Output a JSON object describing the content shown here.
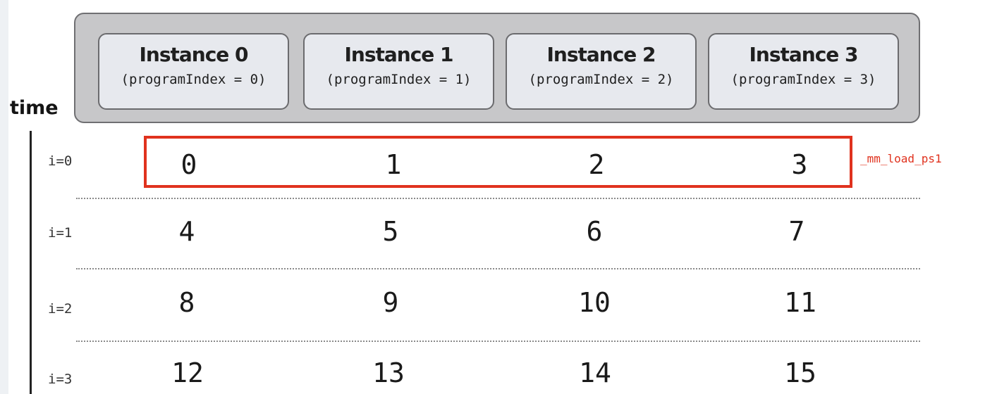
{
  "instances": [
    {
      "title": "Instance 0",
      "subtitle": "(programIndex = 0)"
    },
    {
      "title": "Instance 1",
      "subtitle": "(programIndex = 1)"
    },
    {
      "title": "Instance 2",
      "subtitle": "(programIndex = 2)"
    },
    {
      "title": "Instance 3",
      "subtitle": "(programIndex = 3)"
    }
  ],
  "axis_label": "time",
  "rows": [
    {
      "label": "i=0",
      "values": [
        "0",
        "1",
        "2",
        "3"
      ]
    },
    {
      "label": "i=1",
      "values": [
        "4",
        "5",
        "6",
        "7"
      ]
    },
    {
      "label": "i=2",
      "values": [
        "8",
        "9",
        "10",
        "11"
      ]
    },
    {
      "label": "i=3",
      "values": [
        "12",
        "13",
        "14",
        "15"
      ]
    }
  ],
  "highlight": {
    "label": "_mm_load_ps1",
    "color": "#e0321e"
  }
}
